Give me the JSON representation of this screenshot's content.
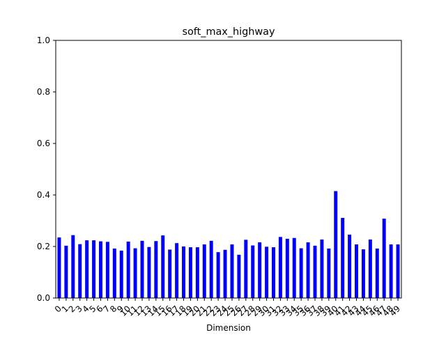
{
  "chart_data": {
    "type": "bar",
    "title": "soft_max_highway",
    "xlabel": "Dimension",
    "ylabel": "",
    "ylim": [
      0,
      1.0
    ],
    "yticks": [
      "0.0",
      "0.2",
      "0.4",
      "0.6",
      "0.8",
      "1.0"
    ],
    "bar_color": "#0000ff",
    "grid": false,
    "categories": [
      "0",
      "1",
      "2",
      "3",
      "4",
      "5",
      "6",
      "7",
      "8",
      "9",
      "10",
      "11",
      "12",
      "13",
      "14",
      "15",
      "16",
      "17",
      "18",
      "19",
      "20",
      "21",
      "22",
      "23",
      "24",
      "25",
      "26",
      "27",
      "28",
      "29",
      "30",
      "31",
      "32",
      "33",
      "34",
      "35",
      "36",
      "37",
      "38",
      "39",
      "40",
      "41",
      "42",
      "43",
      "44",
      "45",
      "46",
      "47",
      "48",
      "49"
    ],
    "values": [
      0.235,
      0.203,
      0.244,
      0.209,
      0.224,
      0.224,
      0.22,
      0.218,
      0.192,
      0.184,
      0.219,
      0.193,
      0.222,
      0.198,
      0.221,
      0.243,
      0.188,
      0.213,
      0.2,
      0.197,
      0.197,
      0.208,
      0.222,
      0.178,
      0.187,
      0.208,
      0.168,
      0.226,
      0.204,
      0.216,
      0.199,
      0.197,
      0.237,
      0.23,
      0.233,
      0.193,
      0.216,
      0.203,
      0.227,
      0.192,
      0.415,
      0.311,
      0.246,
      0.208,
      0.189,
      0.227,
      0.192,
      0.308,
      0.208,
      0.208
    ]
  }
}
